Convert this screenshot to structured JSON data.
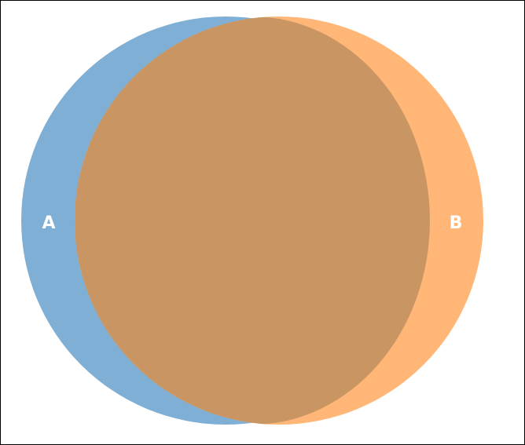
{
  "diagram": {
    "type": "venn",
    "sets": [
      {
        "id": "a",
        "label": "A",
        "color": "#7FAFD4"
      },
      {
        "id": "b",
        "label": "B",
        "color": "#FFB677"
      }
    ],
    "overlap_color": "#C99663",
    "border_color": "#000000",
    "background_color": "#FFFFFF"
  }
}
